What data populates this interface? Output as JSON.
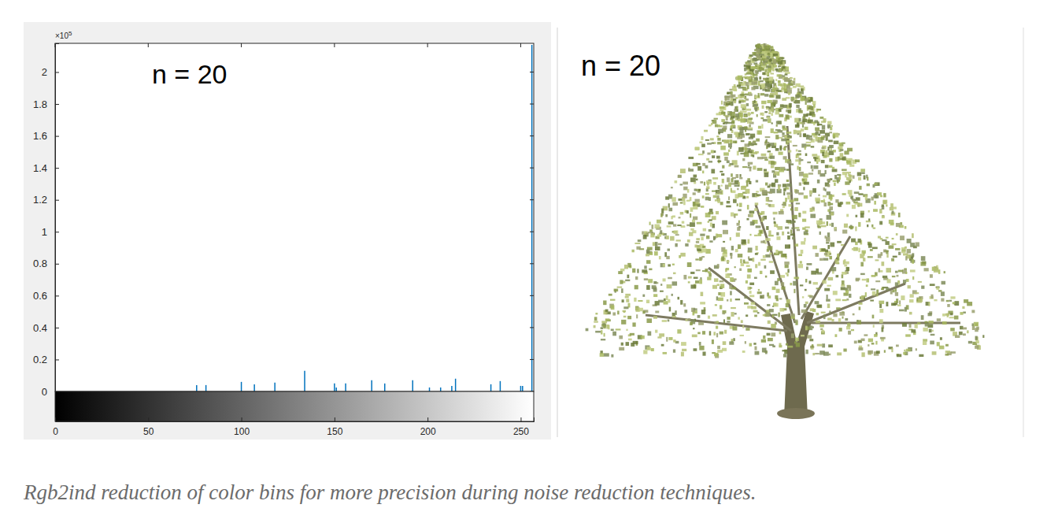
{
  "chart_data": {
    "type": "stem",
    "title": "n = 20",
    "y_exponent_label": {
      "base": "×10",
      "exponent": "5"
    },
    "x": [
      76,
      81,
      100,
      107,
      118,
      134,
      150,
      151,
      156,
      170,
      177,
      192,
      201,
      207,
      213,
      215,
      234,
      239,
      250,
      251,
      256
    ],
    "values": [
      0.04,
      0.04,
      0.06,
      0.045,
      0.055,
      0.13,
      0.05,
      0.025,
      0.05,
      0.07,
      0.05,
      0.07,
      0.025,
      0.025,
      0.035,
      0.08,
      0.045,
      0.065,
      0.035,
      0.035,
      2.17
    ],
    "color": "#0072bd",
    "xlim": [
      0,
      257
    ],
    "xticks": [
      0,
      50,
      100,
      150,
      200,
      250
    ],
    "ylim": [
      0,
      2.18
    ],
    "yticks": [
      0,
      0.2,
      0.4,
      0.6,
      0.8,
      1,
      1.2,
      1.4,
      1.6,
      1.8,
      2
    ],
    "grid": false
  },
  "image_label": "n = 20",
  "caption": "Rgb2ind reduction of color bins for more precision during noise reduction techniques."
}
